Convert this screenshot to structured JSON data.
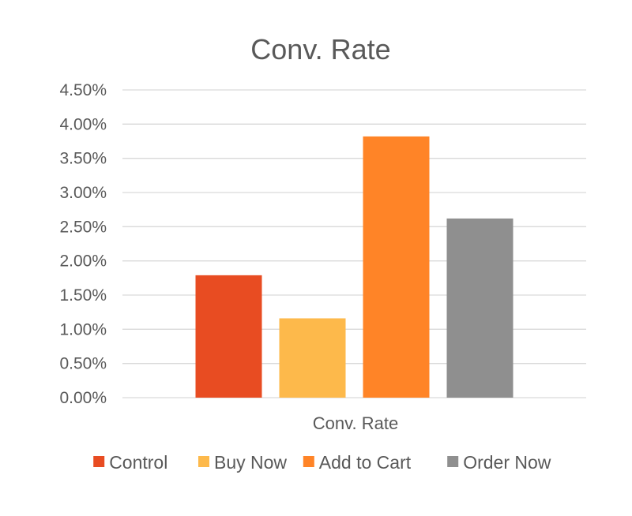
{
  "chart_data": {
    "type": "bar",
    "title": "Conv. Rate",
    "categories": [
      "Conv. Rate"
    ],
    "series": [
      {
        "name": "Control",
        "values": [
          0.0179
        ],
        "color": "#E84C22"
      },
      {
        "name": "Buy Now",
        "values": [
          0.0116
        ],
        "color": "#FDB94B"
      },
      {
        "name": "Add to Cart",
        "values": [
          0.0382
        ],
        "color": "#FF8427"
      },
      {
        "name": "Order Now",
        "values": [
          0.0262
        ],
        "color": "#8F8F8F"
      }
    ],
    "yticks": [
      "0.00%",
      "0.50%",
      "1.00%",
      "1.50%",
      "2.00%",
      "2.50%",
      "3.00%",
      "3.50%",
      "4.00%",
      "4.50%"
    ],
    "ylim": [
      0,
      0.045
    ],
    "grid": true,
    "legend_position": "bottom"
  }
}
